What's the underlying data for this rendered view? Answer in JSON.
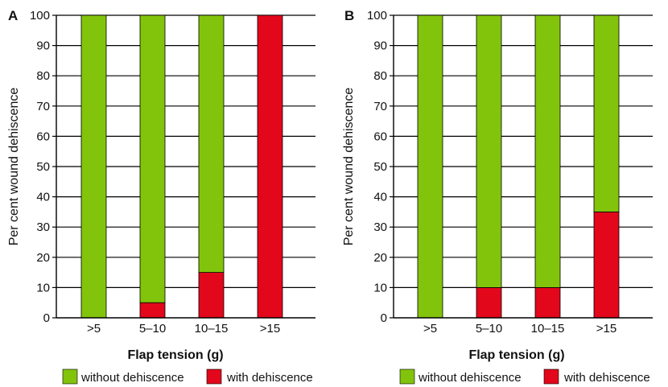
{
  "chart_data": [
    {
      "type": "bar",
      "stacked": true,
      "panel_label": "A",
      "categories": [
        ">5",
        "5–10",
        "10–15",
        ">15"
      ],
      "series": [
        {
          "name": "with dehiscence",
          "color": "#e3071b",
          "values": [
            0,
            5,
            15,
            100
          ]
        },
        {
          "name": "without dehiscence",
          "color": "#82c30c",
          "values": [
            100,
            95,
            85,
            0
          ]
        }
      ],
      "xlabel": "Flap tension (g)",
      "ylabel": "Per cent wound dehiscence",
      "ylim": [
        0,
        100
      ],
      "yticks": [
        0,
        10,
        20,
        30,
        40,
        50,
        60,
        70,
        80,
        90,
        100
      ],
      "grid": true,
      "legend": "bottom"
    },
    {
      "type": "bar",
      "stacked": true,
      "panel_label": "B",
      "categories": [
        ">5",
        "5–10",
        "10–15",
        ">15"
      ],
      "series": [
        {
          "name": "with dehiscence",
          "color": "#e3071b",
          "values": [
            0,
            10,
            10,
            35
          ]
        },
        {
          "name": "without dehiscence",
          "color": "#82c30c",
          "values": [
            100,
            90,
            90,
            65
          ]
        }
      ],
      "xlabel": "Flap tension (g)",
      "ylabel": "Per cent wound dehiscence",
      "ylim": [
        0,
        100
      ],
      "yticks": [
        0,
        10,
        20,
        30,
        40,
        50,
        60,
        70,
        80,
        90,
        100
      ],
      "grid": true,
      "legend": "bottom"
    }
  ],
  "legend": {
    "items": [
      {
        "label": "without dehiscence",
        "color": "#82c30c"
      },
      {
        "label": "with dehiscence",
        "color": "#e3071b"
      }
    ]
  }
}
